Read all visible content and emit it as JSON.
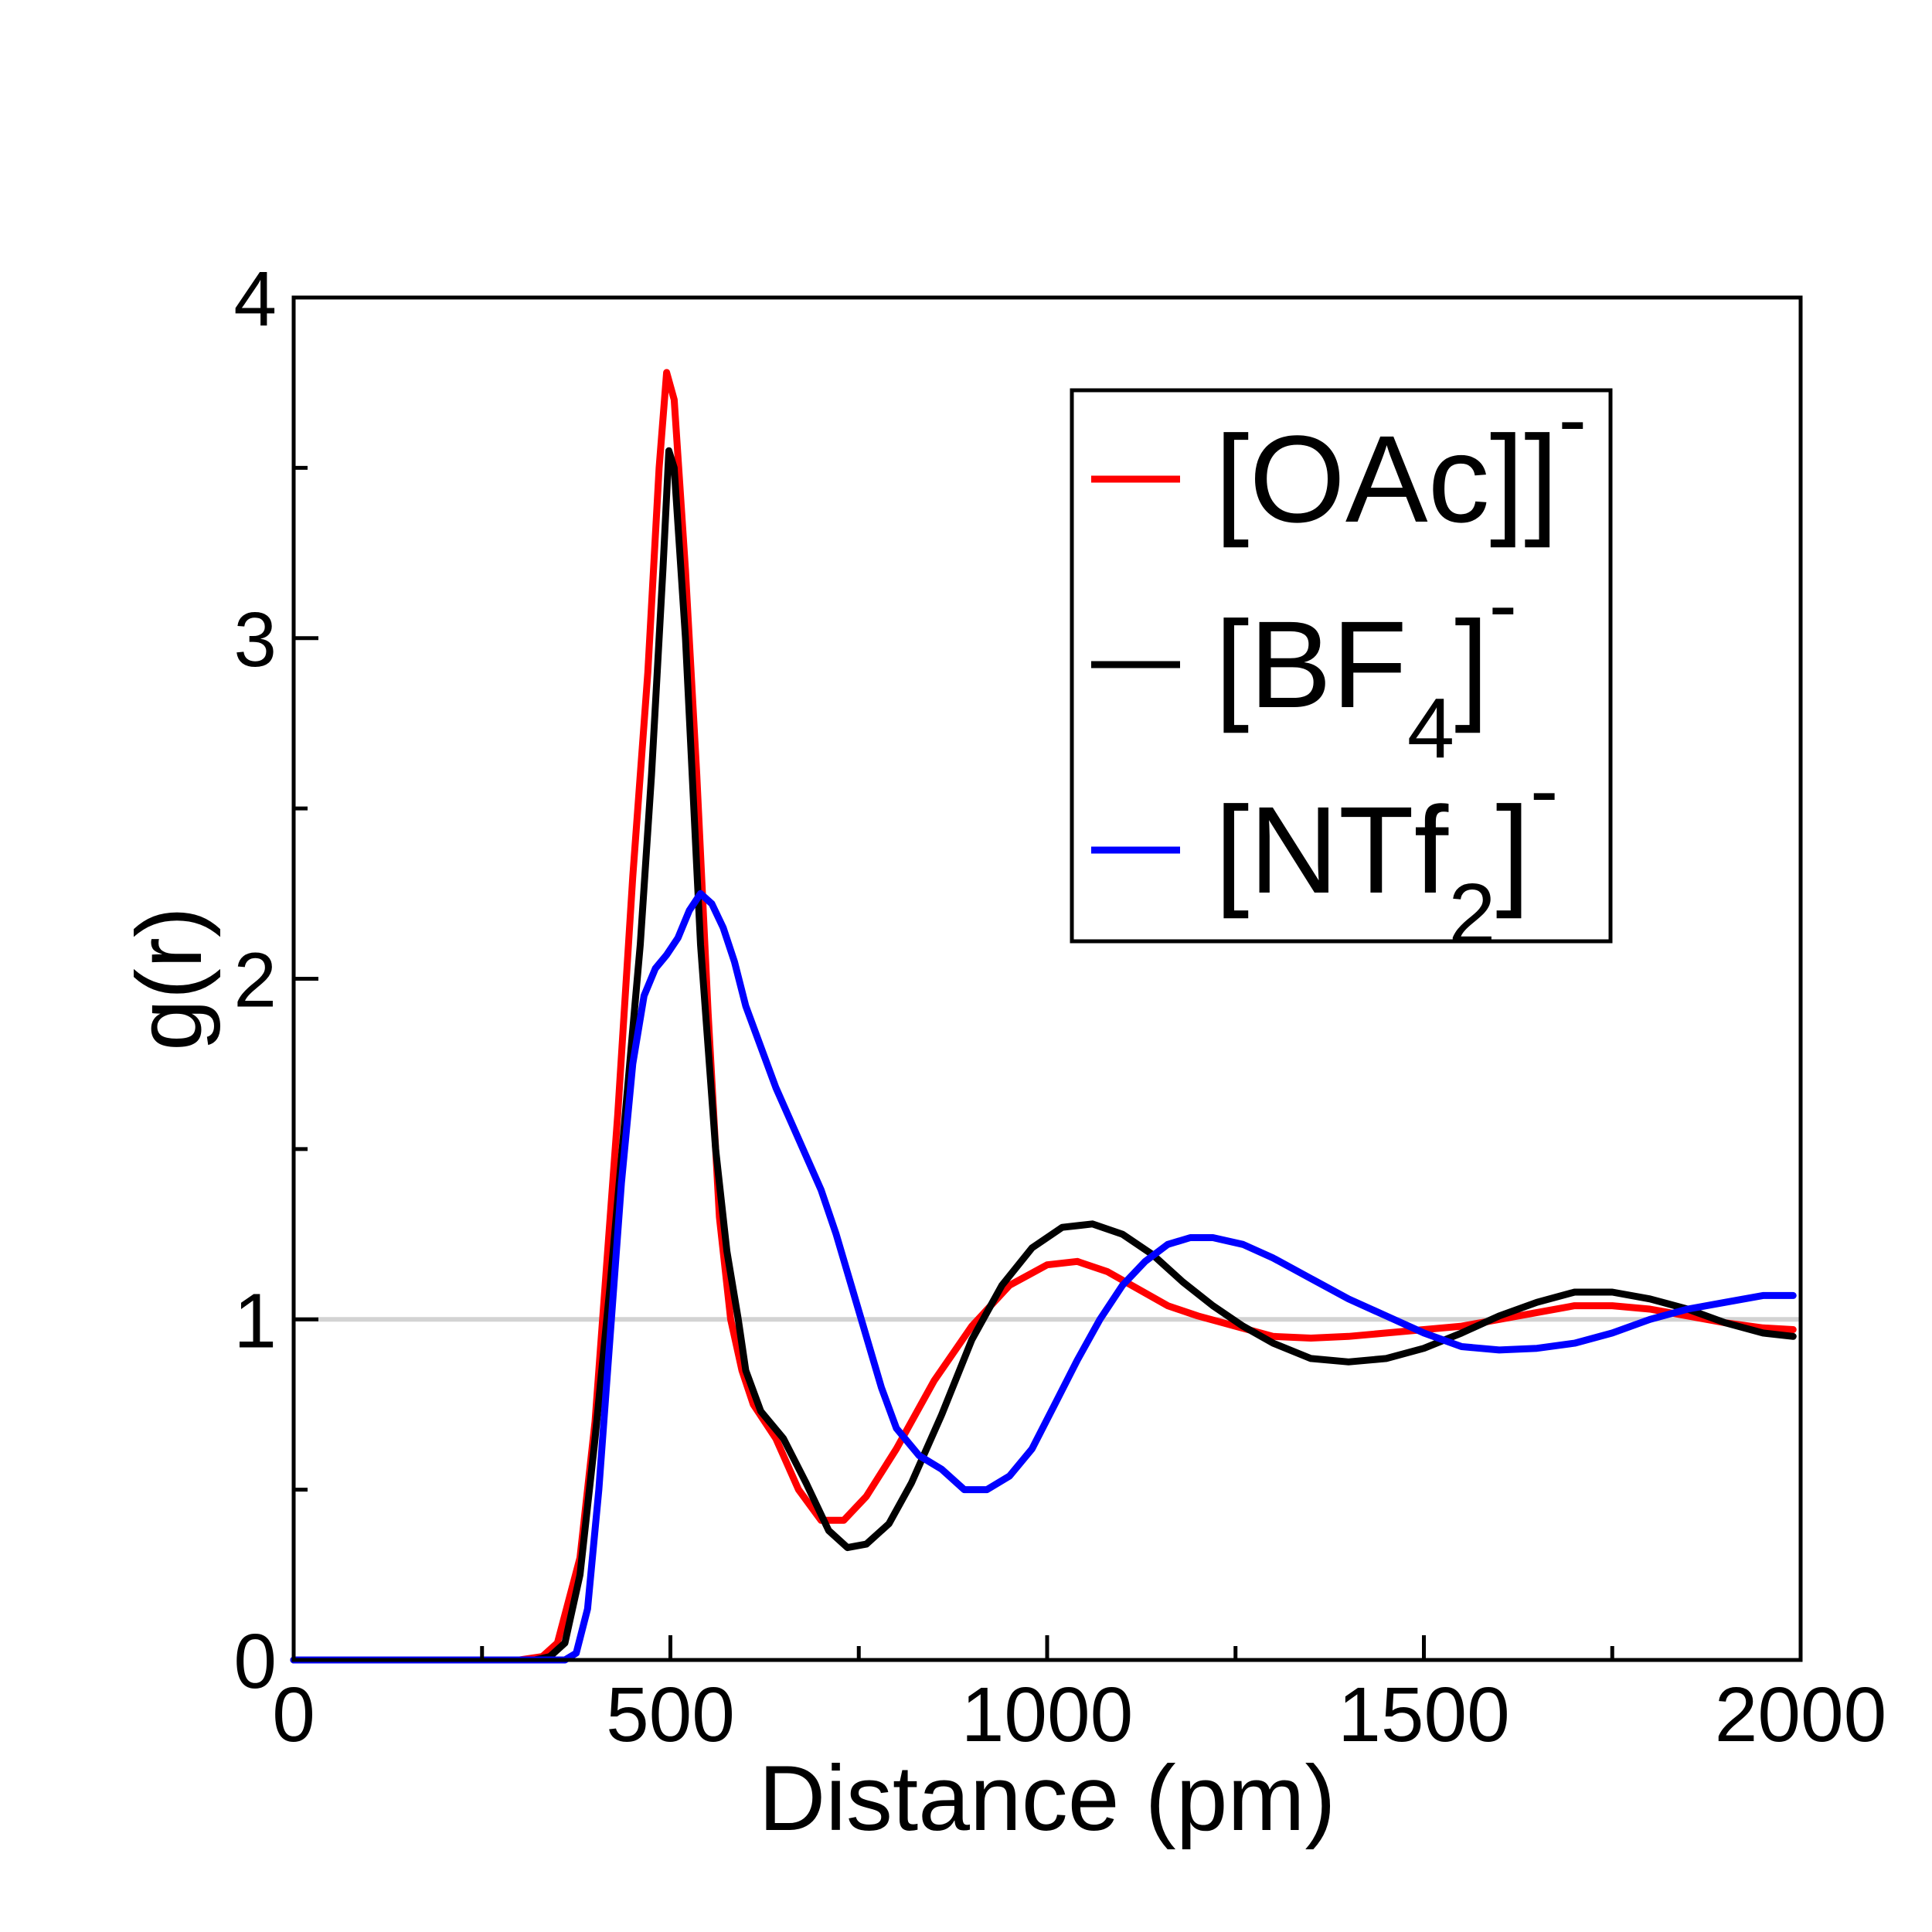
{
  "chart_data": {
    "type": "line",
    "xlabel": "Distance (pm)",
    "ylabel": "g(r)",
    "xlim": [
      0,
      2000
    ],
    "ylim": [
      0,
      4
    ],
    "x_ticks": [
      0,
      500,
      1000,
      1500,
      2000
    ],
    "x_minor_ticks": [
      250,
      750,
      1250,
      1750
    ],
    "y_ticks": [
      0,
      1,
      2,
      3,
      4
    ],
    "y_minor_ticks": [
      0.5,
      1.5,
      2.5,
      3.5
    ],
    "reference_line": 1,
    "legend_position": "top-right",
    "series": [
      {
        "name": "[OAc]",
        "name_sub": "",
        "name_sup": "-",
        "color": "#ff0000",
        "points": [
          [
            0,
            0
          ],
          [
            300,
            0
          ],
          [
            330,
            0.01
          ],
          [
            350,
            0.05
          ],
          [
            380,
            0.3
          ],
          [
            400,
            0.7
          ],
          [
            430,
            1.6
          ],
          [
            450,
            2.3
          ],
          [
            470,
            2.9
          ],
          [
            485,
            3.5
          ],
          [
            495,
            3.78
          ],
          [
            505,
            3.7
          ],
          [
            520,
            3.2
          ],
          [
            535,
            2.6
          ],
          [
            550,
            1.9
          ],
          [
            565,
            1.3
          ],
          [
            580,
            1.0
          ],
          [
            595,
            0.85
          ],
          [
            610,
            0.75
          ],
          [
            640,
            0.65
          ],
          [
            670,
            0.5
          ],
          [
            700,
            0.41
          ],
          [
            730,
            0.41
          ],
          [
            760,
            0.48
          ],
          [
            800,
            0.62
          ],
          [
            850,
            0.82
          ],
          [
            900,
            0.98
          ],
          [
            950,
            1.1
          ],
          [
            1000,
            1.16
          ],
          [
            1040,
            1.17
          ],
          [
            1080,
            1.14
          ],
          [
            1120,
            1.09
          ],
          [
            1160,
            1.04
          ],
          [
            1200,
            1.01
          ],
          [
            1250,
            0.98
          ],
          [
            1300,
            0.95
          ],
          [
            1350,
            0.945
          ],
          [
            1400,
            0.95
          ],
          [
            1450,
            0.96
          ],
          [
            1500,
            0.97
          ],
          [
            1550,
            0.98
          ],
          [
            1600,
            1.0
          ],
          [
            1650,
            1.02
          ],
          [
            1700,
            1.04
          ],
          [
            1750,
            1.04
          ],
          [
            1800,
            1.03
          ],
          [
            1850,
            1.01
          ],
          [
            1900,
            0.99
          ],
          [
            1950,
            0.975
          ],
          [
            1990,
            0.97
          ]
        ]
      },
      {
        "name": "[BF",
        "name_sub": "4",
        "name_sup": "-",
        "color": "#000000",
        "points": [
          [
            0,
            0
          ],
          [
            320,
            0
          ],
          [
            340,
            0.01
          ],
          [
            360,
            0.05
          ],
          [
            380,
            0.25
          ],
          [
            400,
            0.65
          ],
          [
            420,
            1.1
          ],
          [
            440,
            1.6
          ],
          [
            460,
            2.1
          ],
          [
            475,
            2.6
          ],
          [
            490,
            3.2
          ],
          [
            498,
            3.55
          ],
          [
            505,
            3.5
          ],
          [
            520,
            3.0
          ],
          [
            540,
            2.1
          ],
          [
            560,
            1.5
          ],
          [
            575,
            1.2
          ],
          [
            590,
            1.0
          ],
          [
            600,
            0.85
          ],
          [
            620,
            0.73
          ],
          [
            650,
            0.65
          ],
          [
            680,
            0.52
          ],
          [
            710,
            0.38
          ],
          [
            735,
            0.33
          ],
          [
            760,
            0.34
          ],
          [
            790,
            0.4
          ],
          [
            820,
            0.52
          ],
          [
            860,
            0.72
          ],
          [
            900,
            0.94
          ],
          [
            940,
            1.1
          ],
          [
            980,
            1.21
          ],
          [
            1020,
            1.27
          ],
          [
            1060,
            1.28
          ],
          [
            1100,
            1.25
          ],
          [
            1140,
            1.19
          ],
          [
            1180,
            1.11
          ],
          [
            1220,
            1.04
          ],
          [
            1260,
            0.98
          ],
          [
            1300,
            0.93
          ],
          [
            1350,
            0.885
          ],
          [
            1400,
            0.875
          ],
          [
            1450,
            0.885
          ],
          [
            1500,
            0.915
          ],
          [
            1550,
            0.96
          ],
          [
            1600,
            1.01
          ],
          [
            1650,
            1.05
          ],
          [
            1700,
            1.08
          ],
          [
            1750,
            1.08
          ],
          [
            1800,
            1.06
          ],
          [
            1850,
            1.03
          ],
          [
            1900,
            0.99
          ],
          [
            1950,
            0.96
          ],
          [
            1990,
            0.95
          ]
        ]
      },
      {
        "name": "[NTf",
        "name_sub": "2",
        "name_sup": "-",
        "color": "#0000ff",
        "points": [
          [
            0,
            0
          ],
          [
            360,
            0
          ],
          [
            375,
            0.02
          ],
          [
            390,
            0.15
          ],
          [
            405,
            0.5
          ],
          [
            420,
            0.95
          ],
          [
            435,
            1.4
          ],
          [
            450,
            1.75
          ],
          [
            465,
            1.95
          ],
          [
            480,
            2.03
          ],
          [
            495,
            2.07
          ],
          [
            510,
            2.12
          ],
          [
            525,
            2.2
          ],
          [
            540,
            2.25
          ],
          [
            555,
            2.22
          ],
          [
            570,
            2.15
          ],
          [
            585,
            2.05
          ],
          [
            600,
            1.92
          ],
          [
            620,
            1.8
          ],
          [
            640,
            1.68
          ],
          [
            660,
            1.58
          ],
          [
            680,
            1.48
          ],
          [
            700,
            1.38
          ],
          [
            720,
            1.25
          ],
          [
            740,
            1.1
          ],
          [
            760,
            0.95
          ],
          [
            780,
            0.8
          ],
          [
            800,
            0.68
          ],
          [
            830,
            0.6
          ],
          [
            860,
            0.56
          ],
          [
            890,
            0.5
          ],
          [
            920,
            0.5
          ],
          [
            950,
            0.54
          ],
          [
            980,
            0.62
          ],
          [
            1010,
            0.75
          ],
          [
            1040,
            0.88
          ],
          [
            1070,
            1.0
          ],
          [
            1100,
            1.1
          ],
          [
            1130,
            1.17
          ],
          [
            1160,
            1.22
          ],
          [
            1190,
            1.24
          ],
          [
            1220,
            1.24
          ],
          [
            1260,
            1.22
          ],
          [
            1300,
            1.18
          ],
          [
            1350,
            1.12
          ],
          [
            1400,
            1.06
          ],
          [
            1450,
            1.01
          ],
          [
            1500,
            0.96
          ],
          [
            1550,
            0.92
          ],
          [
            1600,
            0.91
          ],
          [
            1650,
            0.915
          ],
          [
            1700,
            0.93
          ],
          [
            1750,
            0.96
          ],
          [
            1800,
            1.0
          ],
          [
            1850,
            1.03
          ],
          [
            1900,
            1.05
          ],
          [
            1950,
            1.07
          ],
          [
            1990,
            1.07
          ]
        ]
      }
    ]
  }
}
